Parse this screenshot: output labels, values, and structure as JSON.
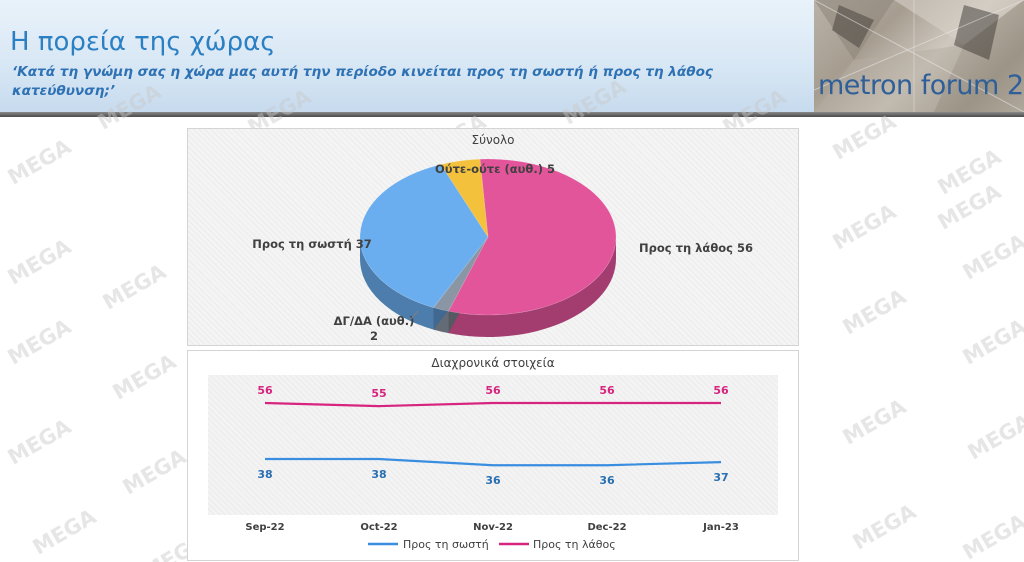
{
  "header": {
    "title": "Η πορεία της χώρας",
    "subtitle_line1": "‘Κατά τη γνώμη σας η χώρα μας αυτή την περίοδο κινείται προς τη σωστή ή προς τη λάθος",
    "subtitle_line2": "κατεύθυνση;’",
    "logo_text": "metron forum 2"
  },
  "watermark": "MEGA",
  "chart_data": [
    {
      "type": "pie",
      "title": "Σύνολο",
      "slices": [
        {
          "label": "Προς τη λάθος",
          "value": 56,
          "color": "#e3559b",
          "display": "Προς τη λάθος 56"
        },
        {
          "label": "ΔΓ/ΔΑ (αυθ.)",
          "value": 2,
          "color": "#8a96a4",
          "display_line1": "ΔΓ/ΔΑ (αυθ.)",
          "display_line2": "2"
        },
        {
          "label": "Προς τη σωστή",
          "value": 37,
          "color": "#6aaef0",
          "display": "Προς τη σωστή 37"
        },
        {
          "label": "Ούτε-ούτε (αυθ.)",
          "value": 5,
          "color": "#f3c13c",
          "display": "Ούτε-ούτε (αυθ.) 5"
        }
      ]
    },
    {
      "type": "line",
      "title": "Διαχρονικά στοιχεία",
      "categories": [
        "Sep-22",
        "Oct-22",
        "Nov-22",
        "Dec-22",
        "Jan-23"
      ],
      "series": [
        {
          "name": "Προς τη σωστή",
          "values": [
            38,
            38,
            36,
            36,
            37
          ],
          "color": "#3a8ee0",
          "label_color": "#2a6fb0"
        },
        {
          "name": "Προς τη λάθος",
          "values": [
            56,
            55,
            56,
            56,
            56
          ],
          "color": "#d6247f",
          "label_color": "#d6247f"
        }
      ],
      "ylim": [
        20,
        65
      ],
      "legend_position": "bottom"
    }
  ]
}
